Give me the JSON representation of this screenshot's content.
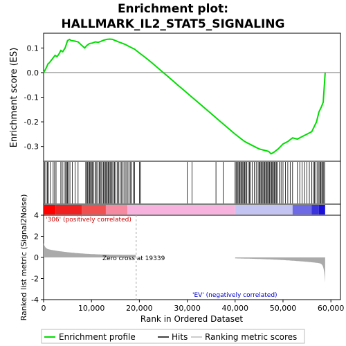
{
  "chart_data": {
    "type": "line",
    "title_line1": "Enrichment plot:",
    "title_line2": "HALLMARK_IL2_STAT5_SIGNALING",
    "xlabel": "Rank in Ordered Dataset",
    "ylabel_top": "Enrichment score (ES)",
    "ylabel_bottom": "Ranked list metric (Signal2Noise)",
    "xlim": [
      0,
      62000
    ],
    "es_ylim": [
      -0.36,
      0.16
    ],
    "metric_ylim": [
      -4,
      4
    ],
    "x_ticks": [
      0,
      10000,
      20000,
      30000,
      40000,
      50000,
      60000
    ],
    "x_tick_labels": [
      "0",
      "10,000",
      "20,000",
      "30,000",
      "40,000",
      "50,000",
      "60,000"
    ],
    "es_ticks": [
      0.1,
      0.0,
      -0.1,
      -0.2,
      -0.3
    ],
    "es_tick_labels": [
      "0.1",
      "0.0",
      "-0.1",
      "-0.2",
      "-0.3"
    ],
    "metric_ticks": [
      4,
      2,
      0,
      -2,
      -4
    ],
    "metric_tick_labels": [
      "4",
      "2",
      "0",
      "-2",
      "-4"
    ],
    "zero_cross_rank": 19339,
    "zero_cross_label": "Zero cross at 19339",
    "pos_label": "'306' (positively correlated)",
    "neg_label": "'EV' (negatively correlated)",
    "legend": [
      "Enrichment profile",
      "Hits",
      "Ranking metric scores"
    ],
    "colors": {
      "es_line": "#00dd00",
      "hits": "#000000",
      "metric_fill": "#aaaaaa",
      "pos_text": "#cc0000",
      "neg_text": "#0000cc",
      "bar_red": "#ff0000",
      "bar_pink": "#f7b3dd",
      "bar_lavender": "#c4c4f2",
      "bar_blue": "#1a10d8",
      "zero_line": "#aaaaaa"
    },
    "series": [
      {
        "name": "Enrichment profile",
        "x": [
          0,
          300,
          700,
          900,
          1200,
          1600,
          2000,
          2400,
          2800,
          3200,
          3600,
          4000,
          4500,
          5000,
          5400,
          5800,
          6500,
          7200,
          8000,
          8600,
          9000,
          9600,
          10200,
          10800,
          11400,
          12000,
          12600,
          13200,
          13800,
          14400,
          15000,
          16000,
          17000,
          18000,
          19000,
          20000,
          22000,
          25000,
          28000,
          31000,
          34000,
          37000,
          40000,
          42000,
          44000,
          45000,
          46000,
          47000,
          47500,
          48000,
          49000,
          50000,
          51000,
          52000,
          53000,
          54000,
          55000,
          56000,
          57000,
          57500,
          58000,
          58400,
          58600,
          58800
        ],
        "y": [
          0.0,
          0.01,
          0.025,
          0.035,
          0.04,
          0.05,
          0.06,
          0.07,
          0.065,
          0.075,
          0.09,
          0.085,
          0.1,
          0.13,
          0.135,
          0.13,
          0.128,
          0.125,
          0.11,
          0.1,
          0.11,
          0.118,
          0.12,
          0.125,
          0.123,
          0.127,
          0.132,
          0.135,
          0.136,
          0.135,
          0.13,
          0.122,
          0.115,
          0.105,
          0.095,
          0.08,
          0.05,
          0.0,
          -0.05,
          -0.1,
          -0.15,
          -0.2,
          -0.25,
          -0.28,
          -0.3,
          -0.31,
          -0.315,
          -0.32,
          -0.33,
          -0.325,
          -0.31,
          -0.29,
          -0.28,
          -0.265,
          -0.27,
          -0.26,
          -0.25,
          -0.24,
          -0.2,
          -0.16,
          -0.14,
          -0.12,
          -0.06,
          0.0
        ]
      }
    ],
    "hit_ranks": [
      250,
      500,
      800,
      1000,
      1400,
      2000,
      2300,
      2600,
      3600,
      3900,
      4300,
      4600,
      4800,
      5000,
      5200,
      5500,
      6000,
      6600,
      7200,
      8800,
      9000,
      9200,
      9400,
      9600,
      9800,
      10000,
      10200,
      10500,
      10800,
      11000,
      11300,
      11600,
      11800,
      12000,
      12200,
      12500,
      12700,
      12900,
      13100,
      13300,
      13500,
      13700,
      13900,
      14100,
      14300,
      14500,
      14800,
      15100,
      15400,
      15700,
      16000,
      16300,
      16600,
      16900,
      17200,
      17500,
      17800,
      18100,
      18400,
      18700,
      19000,
      20000,
      20300,
      30000,
      31000,
      36000,
      37500,
      40000,
      40200,
      40400,
      40600,
      40800,
      41000,
      41200,
      41400,
      41600,
      41800,
      42000,
      42200,
      42400,
      42700,
      43000,
      43300,
      43600,
      44000,
      44400,
      44800,
      45000,
      45200,
      45400,
      45600,
      45800,
      46000,
      46200,
      46400,
      46600,
      46800,
      47000,
      47200,
      47400,
      47600,
      47800,
      48000,
      48200,
      48400,
      48600,
      48800,
      49200,
      49600,
      50000,
      50500,
      51000,
      51500,
      52000,
      53000,
      53500,
      54000,
      54500,
      55000,
      55500,
      56000,
      56300,
      56600,
      56900,
      57200,
      57500,
      57700,
      57900,
      58100,
      58300,
      58500,
      58700
    ]
  }
}
